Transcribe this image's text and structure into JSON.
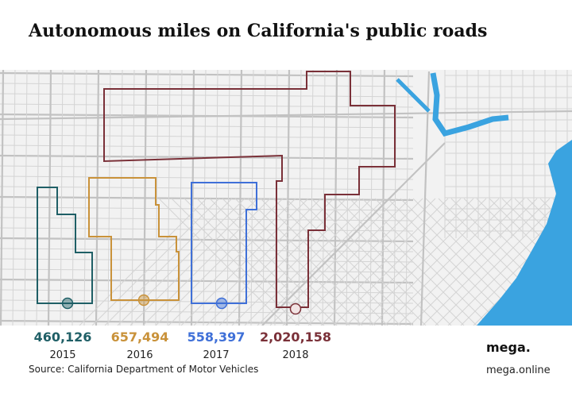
{
  "title": "Autonomous miles on California's public roads",
  "routes": [
    {
      "miles": "460,126",
      "year": "2015",
      "color": "#1f5f66"
    },
    {
      "miles": "657,494",
      "year": "2016",
      "color": "#c9923a"
    },
    {
      "miles": "558,397",
      "year": "2017",
      "color": "#3f70d8"
    },
    {
      "miles": "2,020,158",
      "year": "2018",
      "color": "#7a3038"
    }
  ],
  "source": "Source: California Department of Motor Vehicles",
  "brand": {
    "logo": "mega.",
    "url": "mega.online"
  }
}
